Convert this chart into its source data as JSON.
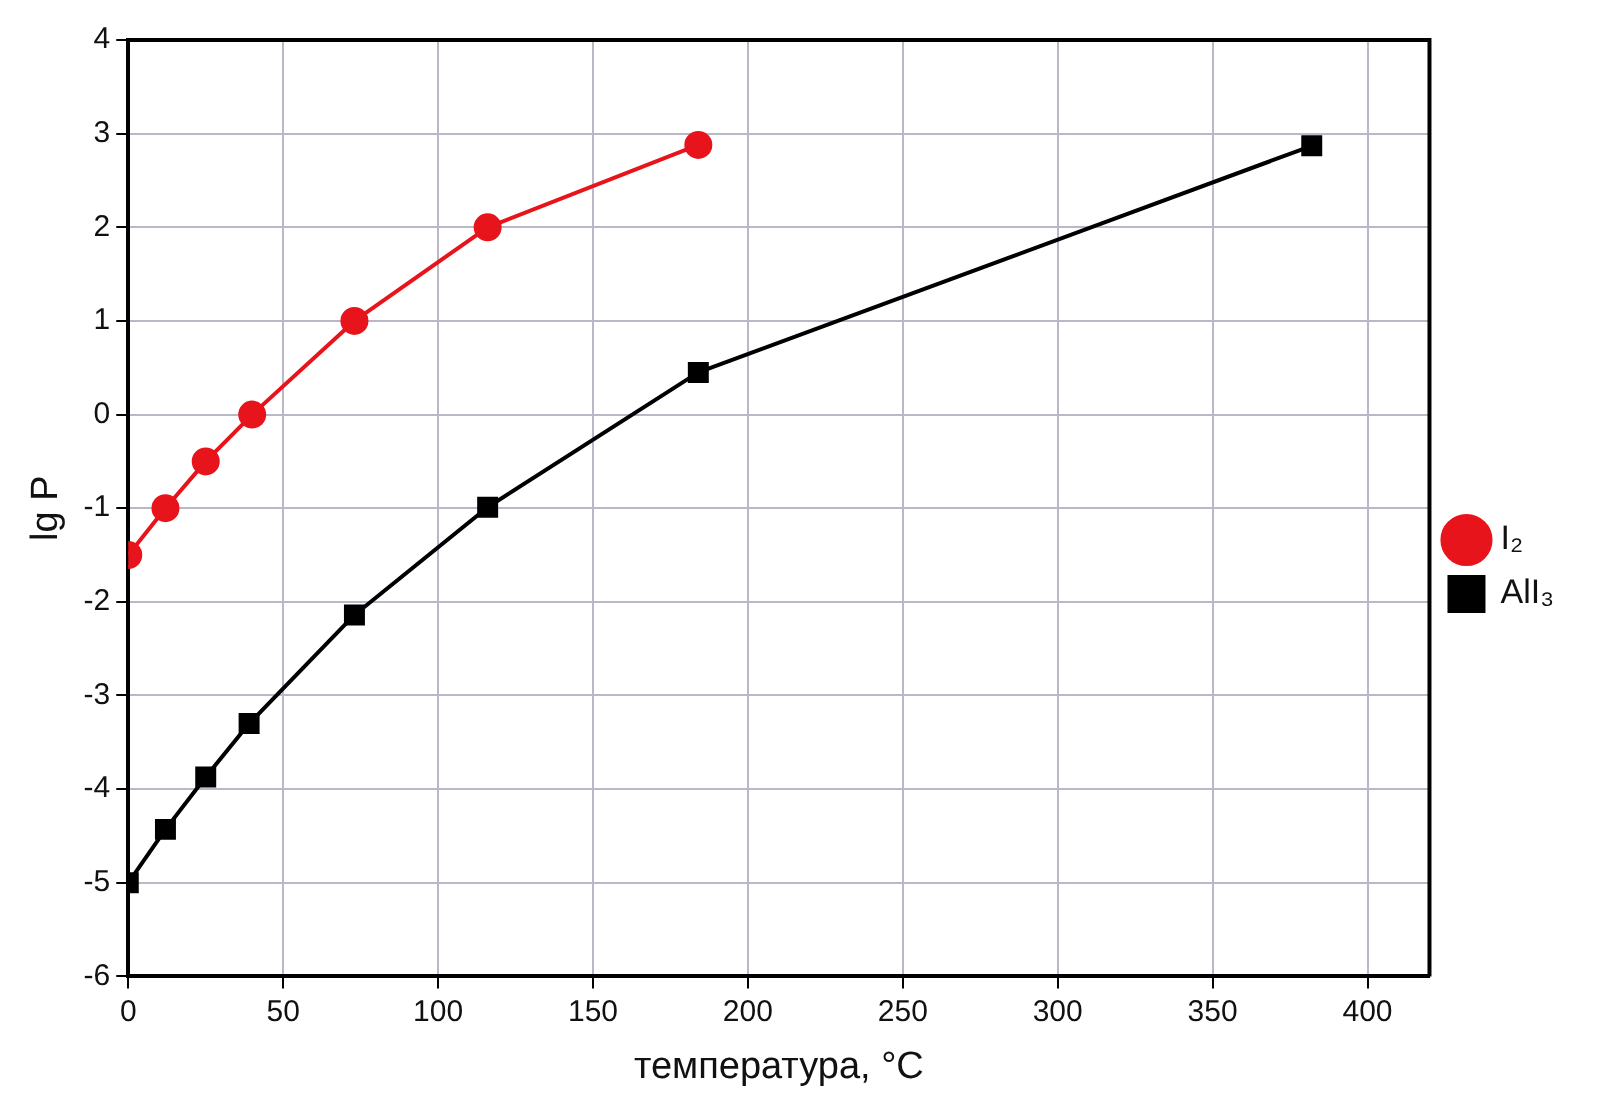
{
  "chart_data": {
    "type": "line",
    "xlabel": "температура, °C",
    "ylabel": "lg P",
    "xlim": [
      0,
      420
    ],
    "xticks": [
      0,
      50,
      100,
      150,
      200,
      250,
      300,
      350,
      400
    ],
    "ylim": [
      -6,
      4
    ],
    "yticks": [
      -6,
      -5,
      -4,
      -3,
      -2,
      -1,
      0,
      1,
      2,
      3,
      4
    ],
    "grid": true,
    "legend": "right",
    "line_style": "solid",
    "series": [
      {
        "name": "I₂",
        "color": "#e8141b",
        "marker": "circle",
        "x": [
          0,
          12,
          25,
          40,
          73,
          116,
          184
        ],
        "values": [
          -1.5,
          -1,
          -0.5,
          0,
          1,
          2,
          2.88
        ]
      },
      {
        "name": "AlI₃",
        "color": "#000000",
        "marker": "square",
        "x": [
          0,
          12,
          25,
          39,
          73,
          116,
          184,
          382
        ],
        "values": [
          -5.0,
          -4.43,
          -3.87,
          -3.3,
          -2.14,
          -0.99,
          0.45,
          2.87
        ]
      }
    ]
  }
}
